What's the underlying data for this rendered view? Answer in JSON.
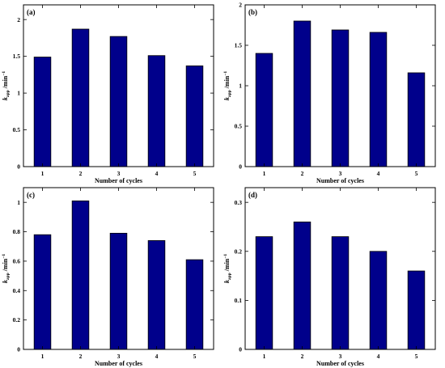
{
  "chart_data": [
    {
      "panel": "(a)",
      "type": "bar",
      "categories": [
        "1",
        "2",
        "3",
        "4",
        "5"
      ],
      "values": [
        1.49,
        1.87,
        1.77,
        1.51,
        1.37
      ],
      "xlabel": "Number of cycles",
      "ylabel": {
        "main": "k",
        "sub": "app",
        "unit": " /min",
        "sup": "−1"
      },
      "ylim": [
        0,
        2.2
      ],
      "yticks": [
        "0",
        "0.5",
        "1",
        "1.5",
        "2"
      ],
      "ytick_values": [
        0,
        0.5,
        1,
        1.5,
        2
      ],
      "bar_color": "#00008B",
      "grid": false
    },
    {
      "panel": "(b)",
      "type": "bar",
      "categories": [
        "1",
        "2",
        "3",
        "4",
        "5"
      ],
      "values": [
        1.4,
        1.8,
        1.69,
        1.66,
        1.16
      ],
      "xlabel": "Number of cycles",
      "ylabel": {
        "main": "k",
        "sub": "app",
        "unit": " /min",
        "sup": "−1"
      },
      "ylim": [
        0,
        2.0
      ],
      "yticks": [
        "0",
        "0.5",
        "1",
        "1.5",
        "2"
      ],
      "ytick_values": [
        0,
        0.5,
        1,
        1.5,
        2
      ],
      "bar_color": "#00008B",
      "grid": false
    },
    {
      "panel": "(c)",
      "type": "bar",
      "categories": [
        "1",
        "2",
        "3",
        "4",
        "5"
      ],
      "values": [
        0.78,
        1.01,
        0.79,
        0.74,
        0.61
      ],
      "xlabel": "Number of cycles",
      "ylabel": {
        "main": "k",
        "sub": "app",
        "unit": " /min",
        "sup": "−1"
      },
      "ylim": [
        0,
        1.1
      ],
      "yticks": [
        "0",
        "0.2",
        "0.4",
        "0.6",
        "0.8",
        "1"
      ],
      "ytick_values": [
        0,
        0.2,
        0.4,
        0.6,
        0.8,
        1
      ],
      "bar_color": "#00008B",
      "grid": false
    },
    {
      "panel": "(d)",
      "type": "bar",
      "categories": [
        "1",
        "2",
        "3",
        "4",
        "5"
      ],
      "values": [
        0.23,
        0.26,
        0.23,
        0.2,
        0.16
      ],
      "xlabel": "Number of cycles",
      "ylabel": {
        "main": "k",
        "sub": "app",
        "unit": " /min",
        "sup": "−1"
      },
      "ylim": [
        0,
        0.33
      ],
      "yticks": [
        "0",
        "0.1",
        "0.2",
        "0.3"
      ],
      "ytick_values": [
        0,
        0.1,
        0.2,
        0.3
      ],
      "bar_color": "#00008B",
      "grid": false
    }
  ]
}
